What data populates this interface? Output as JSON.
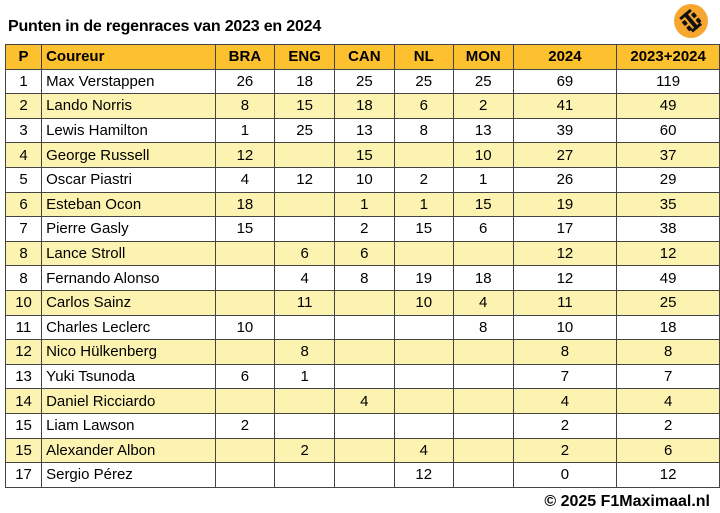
{
  "title": "Punten in de regenraces van 2023 en 2024",
  "footer": "© 2025 F1Maximaal.nl",
  "logo": {
    "icon": "f1-car-icon",
    "color": "#f7a630"
  },
  "headers": [
    "P",
    "Coureur",
    "BRA",
    "ENG",
    "CAN",
    "NL",
    "MON",
    "2024",
    "2023+2024"
  ],
  "rows": [
    [
      "1",
      "Max Verstappen",
      "26",
      "18",
      "25",
      "25",
      "25",
      "69",
      "119"
    ],
    [
      "2",
      "Lando Norris",
      "8",
      "15",
      "18",
      "6",
      "2",
      "41",
      "49"
    ],
    [
      "3",
      "Lewis Hamilton",
      "1",
      "25",
      "13",
      "8",
      "13",
      "39",
      "60"
    ],
    [
      "4",
      "George Russell",
      "12",
      "",
      "15",
      "",
      "10",
      "27",
      "37"
    ],
    [
      "5",
      "Oscar Piastri",
      "4",
      "12",
      "10",
      "2",
      "1",
      "26",
      "29"
    ],
    [
      "6",
      "Esteban Ocon",
      "18",
      "",
      "1",
      "1",
      "15",
      "19",
      "35"
    ],
    [
      "7",
      "Pierre Gasly",
      "15",
      "",
      "2",
      "15",
      "6",
      "17",
      "38"
    ],
    [
      "8",
      "Lance Stroll",
      "",
      "6",
      "6",
      "",
      "",
      "12",
      "12"
    ],
    [
      "8",
      "Fernando Alonso",
      "",
      "4",
      "8",
      "19",
      "18",
      "12",
      "49"
    ],
    [
      "10",
      "Carlos Sainz",
      "",
      "11",
      "",
      "10",
      "4",
      "11",
      "25"
    ],
    [
      "11",
      "Charles Leclerc",
      "10",
      "",
      "",
      "",
      "8",
      "10",
      "18"
    ],
    [
      "12",
      "Nico Hülkenberg",
      "",
      "8",
      "",
      "",
      "",
      "8",
      "8"
    ],
    [
      "13",
      "Yuki Tsunoda",
      "6",
      "1",
      "",
      "",
      "",
      "7",
      "7"
    ],
    [
      "14",
      "Daniel Ricciardo",
      "",
      "",
      "4",
      "",
      "",
      "4",
      "4"
    ],
    [
      "15",
      "Liam Lawson",
      "2",
      "",
      "",
      "",
      "",
      "2",
      "2"
    ],
    [
      "15",
      "Alexander Albon",
      "",
      "2",
      "",
      "4",
      "",
      "2",
      "6"
    ],
    [
      "17",
      "Sergio Pérez",
      "",
      "",
      "",
      "12",
      "",
      "0",
      "12"
    ]
  ],
  "colors": {
    "header": "#fdc02e",
    "row_alt": "#fdf3b0",
    "row": "#ffffff"
  }
}
